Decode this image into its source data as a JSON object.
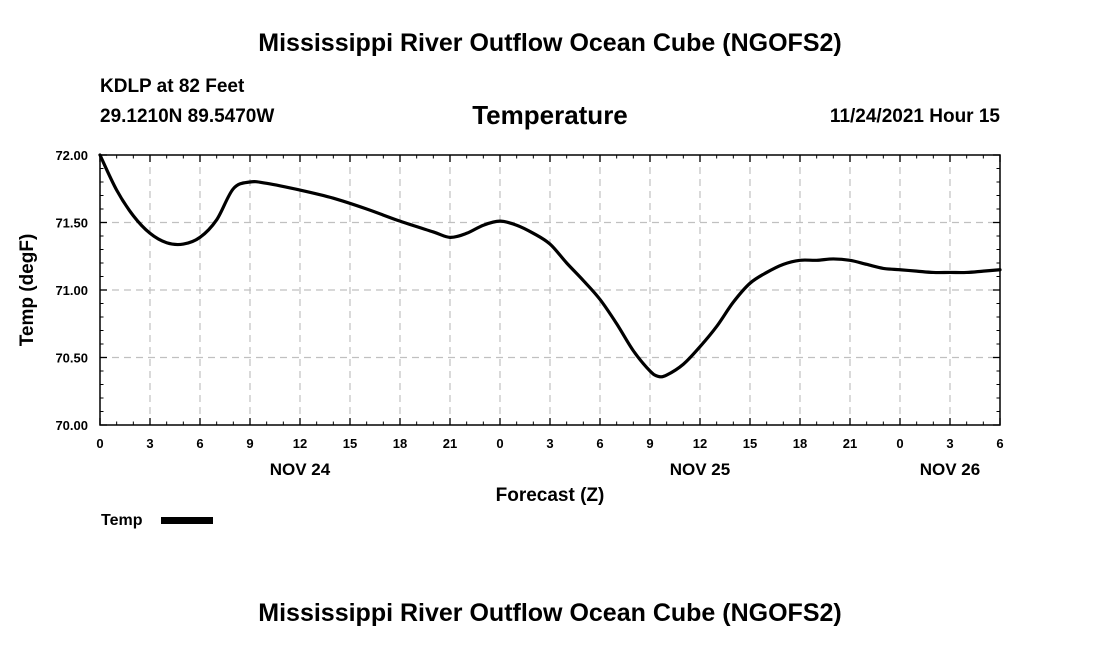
{
  "header": {
    "title": "Mississippi River Outflow Ocean Cube (NGOFS2)",
    "station": "KDLP at 82 Feet",
    "coords": "29.1210N  89.5470W",
    "datetime": "11/24/2021 Hour 15",
    "footer_title": "Mississippi River Outflow Ocean Cube (NGOFS2)"
  },
  "chart_data": {
    "type": "line",
    "title": "Temperature",
    "xlabel": "Forecast (Z)",
    "ylabel": "Temp (degF)",
    "xlim": [
      0,
      54
    ],
    "ylim": [
      70.0,
      72.0
    ],
    "x_ticks": [
      0,
      3,
      6,
      9,
      12,
      15,
      18,
      21,
      24,
      27,
      30,
      33,
      36,
      39,
      42,
      45,
      48,
      51,
      54
    ],
    "x_tick_labels": [
      "0",
      "3",
      "6",
      "9",
      "12",
      "15",
      "18",
      "21",
      "0",
      "3",
      "6",
      "9",
      "12",
      "15",
      "18",
      "21",
      "0",
      "3",
      "6"
    ],
    "y_ticks": [
      70.0,
      70.5,
      71.0,
      71.5,
      72.0
    ],
    "y_tick_labels": [
      "70.00",
      "70.50",
      "71.00",
      "71.50",
      "72.00"
    ],
    "day_labels": [
      {
        "x": 12,
        "label": "NOV 24"
      },
      {
        "x": 36,
        "label": "NOV 25"
      },
      {
        "x": 51,
        "label": "NOV 26"
      }
    ],
    "grid": true,
    "legend": {
      "position": "bottom-left",
      "entries": [
        "Temp"
      ]
    },
    "series": [
      {
        "name": "Temp",
        "color": "#000000",
        "x": [
          0,
          1,
          2,
          3,
          4,
          5,
          6,
          7,
          8,
          9,
          10,
          12,
          14,
          16,
          18,
          20,
          21,
          22,
          23,
          24,
          25,
          26,
          27,
          28,
          29,
          30,
          31,
          32,
          33,
          33.5,
          34,
          35,
          36,
          37,
          38,
          39,
          40,
          41,
          42,
          43,
          44,
          45,
          46,
          47,
          48,
          49,
          50,
          51,
          52,
          53,
          54
        ],
        "values": [
          72.0,
          71.74,
          71.55,
          71.42,
          71.35,
          71.34,
          71.39,
          71.52,
          71.75,
          71.8,
          71.79,
          71.74,
          71.68,
          71.6,
          71.51,
          71.43,
          71.39,
          71.42,
          71.48,
          71.51,
          71.48,
          71.42,
          71.34,
          71.2,
          71.07,
          70.93,
          70.75,
          70.55,
          70.4,
          70.36,
          70.37,
          70.45,
          70.58,
          70.73,
          70.91,
          71.05,
          71.13,
          71.19,
          71.22,
          71.22,
          71.23,
          71.22,
          71.19,
          71.16,
          71.15,
          71.14,
          71.13,
          71.13,
          71.13,
          71.14,
          71.15
        ]
      }
    ]
  }
}
